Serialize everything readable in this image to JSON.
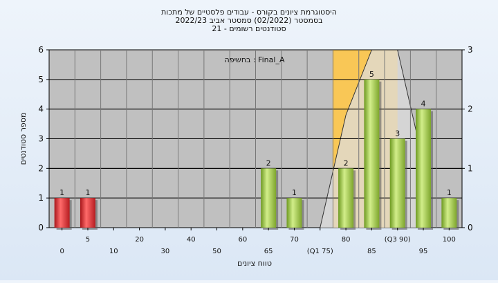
{
  "chart_data": {
    "type": "bar",
    "title_lines": [
      "היסטוגרמת ציונים בקורס - עבודים פלסטיים של מתכות",
      "בסמסטר  (02/2022)  סמסטר אביב 2022/23",
      "סטודנטים רשומים - 21"
    ],
    "annotation": "בחשיפה : Final_A",
    "ylabel": "מספר סטודנטים",
    "xlabel": "טווח ציונים",
    "ylim": [
      0,
      6
    ],
    "yticks": [
      "0",
      "1",
      "2",
      "3",
      "4",
      "5",
      "6"
    ],
    "y2lim": [
      0,
      3
    ],
    "y2ticks": [
      "0",
      "1",
      "2",
      "3"
    ],
    "grid": true,
    "categories": [
      "0",
      "5",
      "10",
      "20",
      "30",
      "40",
      "50",
      "60",
      "65",
      "70",
      "75",
      "80",
      "85",
      "90",
      "95",
      "100"
    ],
    "tick_labels": [
      "0",
      "5",
      "10",
      "20",
      "30",
      "40",
      "50",
      "60",
      "65",
      "70",
      "(Q1 75)",
      "80",
      "85",
      "(Q3 90)",
      "95",
      "100"
    ],
    "values": [
      1,
      1,
      0,
      0,
      0,
      0,
      0,
      0,
      2,
      1,
      0,
      2,
      5,
      3,
      4,
      1
    ],
    "data_labels": [
      "1",
      "1",
      "",
      "",
      "",
      "",
      "",
      "",
      "2",
      "1",
      "",
      "2",
      "5",
      "3",
      "4",
      "1"
    ],
    "bar_colors": [
      "red",
      "red",
      "green",
      "green",
      "green",
      "green",
      "green",
      "green",
      "green",
      "green",
      "green",
      "green",
      "green",
      "green",
      "green",
      "green"
    ],
    "overlay": {
      "iqr_band": {
        "from_category": "75",
        "to_category": "90",
        "y2": 3,
        "color": "#ffc84a"
      },
      "distribution": [
        {
          "category": "75",
          "y2": 0
        },
        {
          "category": "80",
          "y2": 1.9
        },
        {
          "category": "85",
          "y2": 3
        },
        {
          "category": "90",
          "y2": 3
        },
        {
          "category": "95",
          "y2": 1.1
        }
      ]
    },
    "colors": {
      "plot_background": "#c0c0c0",
      "grid": "#000000",
      "red_bar": "#e23a3a",
      "green_bar": "#9ccb3e",
      "band": "#ffc84a",
      "distribution": "#dcdcdc"
    }
  }
}
